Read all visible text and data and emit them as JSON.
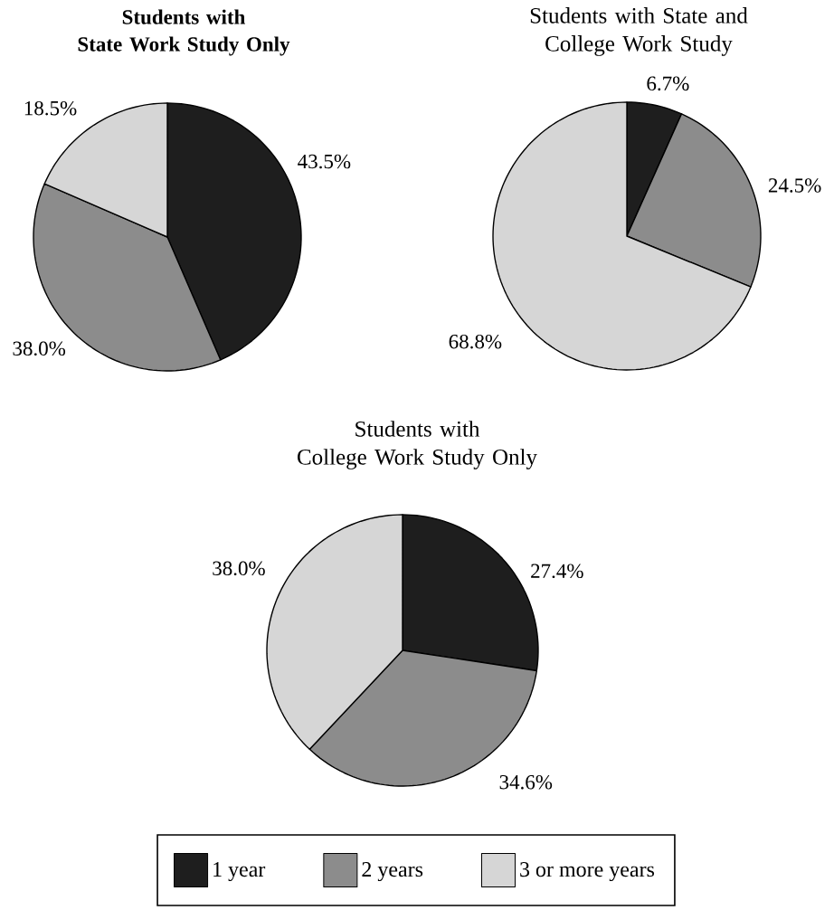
{
  "chart_data": [
    {
      "type": "pie",
      "title": "Students with State Work Study Only",
      "categories": [
        null,
        null,
        null
      ],
      "values": [
        43.5,
        38.0,
        18.5
      ],
      "colors": [
        "#1e1e1e",
        "#8c8c8c",
        "#d6d6d6"
      ],
      "value_labels": [
        "43.5%",
        "38.0%",
        "18.5%"
      ]
    },
    {
      "type": "pie",
      "title": "Students with State and College Work Study",
      "categories": [
        null,
        null,
        null
      ],
      "values": [
        6.7,
        24.5,
        68.8
      ],
      "colors": [
        "#1e1e1e",
        "#8c8c8c",
        "#d6d6d6"
      ],
      "value_labels": [
        "6.7%",
        "24.5%",
        "68.8%"
      ]
    },
    {
      "type": "pie",
      "title": "Students with College Work Study Only",
      "categories": [
        "1 year",
        "2 years",
        "3 or more years"
      ],
      "values": [
        27.4,
        34.6,
        38.0
      ],
      "colors": [
        "#1e1e1e",
        "#8c8c8c",
        "#d6d6d6"
      ],
      "value_labels": [
        "27.4%",
        "34.6%",
        "38.0%"
      ],
      "legend": "bottom"
    }
  ]
}
